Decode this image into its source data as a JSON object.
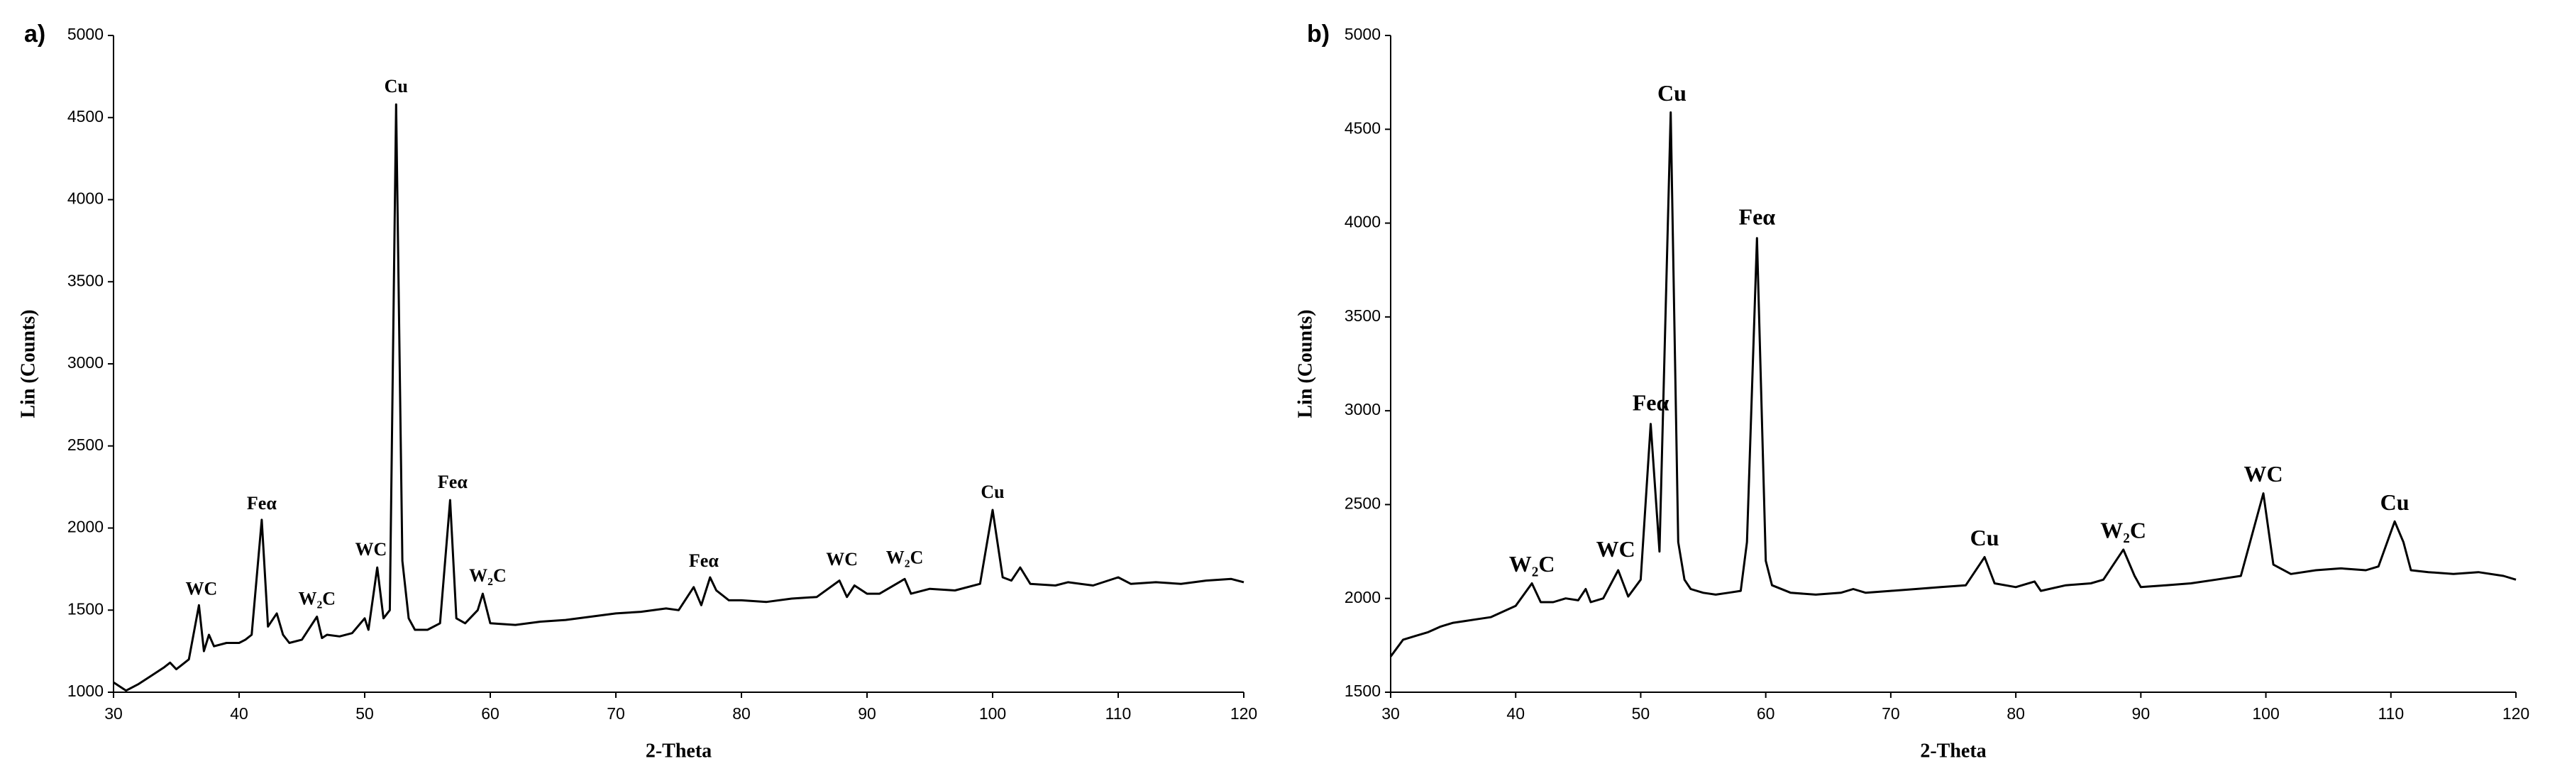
{
  "chart_data": [
    {
      "type": "line",
      "panel": "a)",
      "xlabel": "2-Theta",
      "ylabel": "Lin (Counts)",
      "color": "#000000",
      "xlim": [
        30,
        120
      ],
      "xticks": [
        30,
        40,
        50,
        60,
        70,
        80,
        90,
        100,
        110,
        120
      ],
      "ylim": [
        1000,
        5000
      ],
      "yticks": [
        1000,
        1500,
        2000,
        2500,
        3000,
        3500,
        4000,
        4500,
        5000
      ],
      "x": [
        30,
        31,
        32,
        33,
        34,
        34.5,
        35,
        36,
        36.8,
        37.2,
        37.6,
        38,
        39,
        40,
        40.5,
        41,
        41.8,
        42.3,
        43,
        43.5,
        44,
        45,
        46.2,
        46.6,
        47,
        48,
        49,
        50,
        50.3,
        51,
        51.5,
        52,
        52.5,
        53,
        53.5,
        54,
        55,
        56,
        56.8,
        57.3,
        58,
        59,
        59.4,
        60,
        62,
        64,
        66,
        68,
        70,
        72,
        74,
        75,
        76.2,
        76.8,
        77.5,
        78,
        79,
        80,
        82,
        84,
        86,
        87.8,
        88.4,
        89,
        90,
        91,
        93,
        93.5,
        95,
        97,
        99,
        100,
        100.8,
        101.5,
        102.2,
        103,
        105,
        106,
        108,
        110,
        111,
        113,
        115,
        117,
        119,
        120
      ],
      "values": [
        1060,
        1010,
        1050,
        1100,
        1150,
        1180,
        1140,
        1200,
        1530,
        1250,
        1350,
        1280,
        1300,
        1300,
        1320,
        1350,
        2050,
        1400,
        1480,
        1350,
        1300,
        1320,
        1460,
        1330,
        1350,
        1340,
        1360,
        1450,
        1380,
        1760,
        1450,
        1500,
        4580,
        1800,
        1450,
        1380,
        1380,
        1420,
        2170,
        1450,
        1420,
        1500,
        1600,
        1420,
        1410,
        1430,
        1440,
        1460,
        1480,
        1490,
        1510,
        1500,
        1640,
        1530,
        1700,
        1620,
        1560,
        1560,
        1550,
        1570,
        1580,
        1680,
        1580,
        1650,
        1600,
        1600,
        1690,
        1600,
        1630,
        1620,
        1660,
        2110,
        1700,
        1680,
        1760,
        1660,
        1650,
        1670,
        1650,
        1700,
        1660,
        1670,
        1660,
        1680,
        1690,
        1670
      ],
      "annotations": [
        {
          "text": "WC",
          "x": 37,
          "y": 1620
        },
        {
          "text": "Feα",
          "x": 41.8,
          "y": 2140
        },
        {
          "text": "W₂C",
          "x": 46.2,
          "y": 1560
        },
        {
          "text": "WC",
          "x": 50.5,
          "y": 1860
        },
        {
          "text": "Cu",
          "x": 52.5,
          "y": 4680
        },
        {
          "text": "Feα",
          "x": 57,
          "y": 2270
        },
        {
          "text": "W₂C",
          "x": 59.8,
          "y": 1700
        },
        {
          "text": "Feα",
          "x": 77,
          "y": 1790
        },
        {
          "text": "WC",
          "x": 88,
          "y": 1800
        },
        {
          "text": "W₂C",
          "x": 93,
          "y": 1810
        },
        {
          "text": "Cu",
          "x": 100,
          "y": 2210
        }
      ]
    },
    {
      "type": "line",
      "panel": "b)",
      "xlabel": "2-Theta",
      "ylabel": "Lin (Counts)",
      "color": "#000000",
      "xlim": [
        30,
        120
      ],
      "xticks": [
        30,
        40,
        50,
        60,
        70,
        80,
        90,
        100,
        110,
        120
      ],
      "ylim": [
        1500,
        5000
      ],
      "yticks": [
        1500,
        2000,
        2500,
        3000,
        3500,
        4000,
        4500,
        5000
      ],
      "x": [
        30,
        31,
        32,
        33,
        34,
        35,
        36,
        37,
        38,
        39,
        40,
        41.3,
        42,
        43,
        44,
        45,
        45.6,
        46,
        47,
        48.2,
        49,
        50,
        50.8,
        51.5,
        52.4,
        53,
        53.5,
        54,
        55,
        56,
        57,
        58,
        58.5,
        59.3,
        60,
        60.5,
        62,
        64,
        66,
        67,
        68,
        70,
        72,
        74,
        76,
        77.5,
        78.3,
        80,
        81.5,
        82,
        84,
        86,
        87,
        88.6,
        89.5,
        90,
        92,
        94,
        96,
        98,
        99.8,
        100.6,
        102,
        104,
        106,
        108,
        109,
        110.3,
        111,
        111.6,
        113,
        115,
        117,
        119,
        120
      ],
      "values": [
        1690,
        1780,
        1800,
        1820,
        1850,
        1870,
        1880,
        1890,
        1900,
        1930,
        1960,
        2080,
        1980,
        1980,
        2000,
        1990,
        2050,
        1980,
        2000,
        2150,
        2010,
        2100,
        2930,
        2250,
        4590,
        2300,
        2100,
        2050,
        2030,
        2020,
        2030,
        2040,
        2300,
        3920,
        2200,
        2070,
        2030,
        2020,
        2030,
        2050,
        2030,
        2040,
        2050,
        2060,
        2070,
        2220,
        2080,
        2060,
        2090,
        2040,
        2070,
        2080,
        2100,
        2260,
        2120,
        2060,
        2070,
        2080,
        2100,
        2120,
        2560,
        2180,
        2130,
        2150,
        2160,
        2150,
        2170,
        2410,
        2300,
        2150,
        2140,
        2130,
        2140,
        2120,
        2100
      ],
      "annotations": [
        {
          "text": "W₂C",
          "x": 41.3,
          "y": 2170
        },
        {
          "text": "WC",
          "x": 48,
          "y": 2250
        },
        {
          "text": "Feα",
          "x": 50.8,
          "y": 3030
        },
        {
          "text": "Cu",
          "x": 52.5,
          "y": 4680
        },
        {
          "text": "Feα",
          "x": 59.3,
          "y": 4020
        },
        {
          "text": "Cu",
          "x": 77.5,
          "y": 2310
        },
        {
          "text": "W₂C",
          "x": 88.6,
          "y": 2350
        },
        {
          "text": "WC",
          "x": 99.8,
          "y": 2650
        },
        {
          "text": "Cu",
          "x": 110.3,
          "y": 2500
        }
      ]
    }
  ]
}
